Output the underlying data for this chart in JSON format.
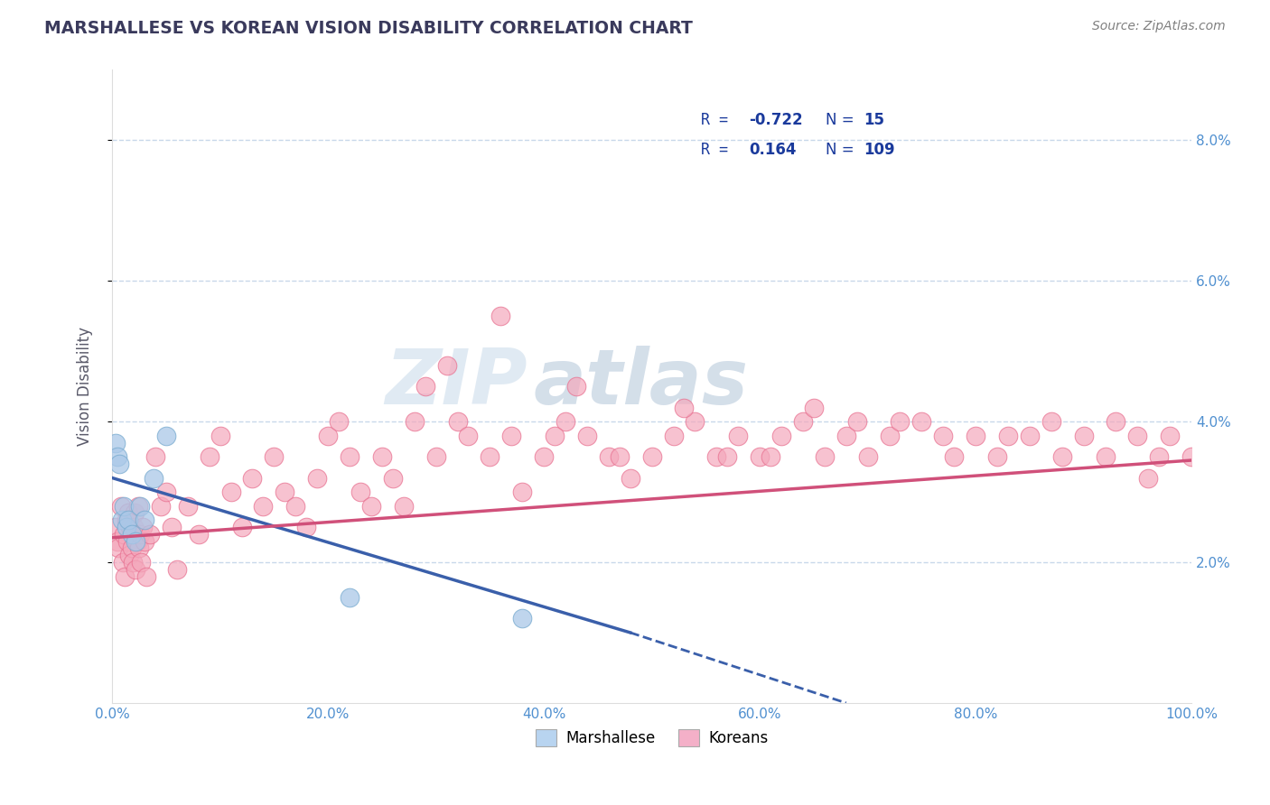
{
  "title": "MARSHALLESE VS KOREAN VISION DISABILITY CORRELATION CHART",
  "source": "Source: ZipAtlas.com",
  "ylabel_label": "Vision Disability",
  "x_tick_labels": [
    "0.0%",
    "20.0%",
    "40.0%",
    "60.0%",
    "80.0%",
    "100.0%"
  ],
  "x_tick_values": [
    0,
    20,
    40,
    60,
    80,
    100
  ],
  "y_tick_labels": [
    "2.0%",
    "4.0%",
    "6.0%",
    "8.0%"
  ],
  "y_tick_values": [
    2,
    4,
    6,
    8
  ],
  "xlim": [
    0,
    100
  ],
  "ylim": [
    0,
    9
  ],
  "marshallese_color": "#aac8e8",
  "korean_color": "#f4a8bc",
  "marshallese_edge": "#7aacd0",
  "korean_edge": "#e87090",
  "trend_blue": "#3a5faa",
  "trend_pink": "#d0507a",
  "legend_blue_face": "#b8d4f0",
  "legend_pink_face": "#f4b0c8",
  "watermark_zip": "ZIP",
  "watermark_atlas": "atlas",
  "title_color": "#3a3a5c",
  "axis_label_color": "#5a5a6a",
  "tick_color": "#5090d0",
  "source_color": "#808080",
  "legend_r_color": "#1a3a9c",
  "background_color": "#ffffff",
  "grid_color": "#c8d8ea",
  "marshallese_x": [
    0.3,
    0.5,
    0.7,
    0.9,
    1.1,
    1.3,
    1.5,
    1.8,
    2.2,
    2.6,
    3.0,
    3.8,
    5.0,
    22.0,
    38.0
  ],
  "marshallese_y": [
    3.7,
    3.5,
    3.4,
    2.6,
    2.8,
    2.5,
    2.6,
    2.4,
    2.3,
    2.8,
    2.6,
    3.2,
    3.8,
    1.5,
    1.2
  ],
  "korean_x": [
    0.3,
    0.5,
    0.6,
    0.8,
    1.0,
    1.1,
    1.2,
    1.3,
    1.4,
    1.5,
    1.6,
    1.7,
    1.8,
    1.9,
    2.0,
    2.1,
    2.2,
    2.3,
    2.4,
    2.5,
    2.6,
    2.7,
    2.8,
    3.0,
    3.2,
    3.5,
    4.0,
    4.5,
    5.0,
    5.5,
    6.0,
    7.0,
    8.0,
    9.0,
    10.0,
    11.0,
    12.0,
    13.0,
    14.0,
    15.0,
    16.0,
    17.0,
    18.0,
    19.0,
    20.0,
    21.0,
    22.0,
    23.0,
    24.0,
    25.0,
    26.0,
    27.0,
    28.0,
    30.0,
    32.0,
    33.0,
    35.0,
    37.0,
    38.0,
    40.0,
    42.0,
    44.0,
    46.0,
    48.0,
    50.0,
    52.0,
    54.0,
    56.0,
    58.0,
    60.0,
    62.0,
    64.0,
    66.0,
    68.0,
    70.0,
    72.0,
    75.0,
    78.0,
    80.0,
    82.0,
    85.0,
    88.0,
    90.0,
    92.0,
    95.0,
    97.0,
    98.0,
    100.0,
    29.0,
    31.0,
    36.0,
    41.0,
    43.0,
    47.0,
    53.0,
    57.0,
    61.0,
    65.0,
    69.0,
    73.0,
    77.0,
    83.0,
    87.0,
    93.0,
    96.0
  ],
  "korean_y": [
    2.5,
    2.3,
    2.2,
    2.8,
    2.0,
    2.4,
    1.8,
    2.6,
    2.3,
    2.7,
    2.1,
    2.5,
    2.2,
    2.0,
    2.5,
    2.7,
    1.9,
    2.3,
    2.8,
    2.2,
    2.4,
    2.0,
    2.5,
    2.3,
    1.8,
    2.4,
    3.5,
    2.8,
    3.0,
    2.5,
    1.9,
    2.8,
    2.4,
    3.5,
    3.8,
    3.0,
    2.5,
    3.2,
    2.8,
    3.5,
    3.0,
    2.8,
    2.5,
    3.2,
    3.8,
    4.0,
    3.5,
    3.0,
    2.8,
    3.5,
    3.2,
    2.8,
    4.0,
    3.5,
    4.0,
    3.8,
    3.5,
    3.8,
    3.0,
    3.5,
    4.0,
    3.8,
    3.5,
    3.2,
    3.5,
    3.8,
    4.0,
    3.5,
    3.8,
    3.5,
    3.8,
    4.0,
    3.5,
    3.8,
    3.5,
    3.8,
    4.0,
    3.5,
    3.8,
    3.5,
    3.8,
    3.5,
    3.8,
    3.5,
    3.8,
    3.5,
    3.8,
    3.5,
    4.5,
    4.8,
    5.5,
    3.8,
    4.5,
    3.5,
    4.2,
    3.5,
    3.5,
    4.2,
    4.0,
    4.0,
    3.8,
    3.8,
    4.0,
    4.0,
    3.2
  ],
  "blue_trend_x0": 0,
  "blue_trend_y0": 3.2,
  "blue_trend_x1": 48,
  "blue_trend_y1": 1.0,
  "blue_dash_x0": 48,
  "blue_dash_y0": 1.0,
  "blue_dash_x1": 68,
  "blue_dash_y1": 0.0,
  "pink_trend_x0": 0,
  "pink_trend_y0": 2.35,
  "pink_trend_x1": 100,
  "pink_trend_y1": 3.45
}
